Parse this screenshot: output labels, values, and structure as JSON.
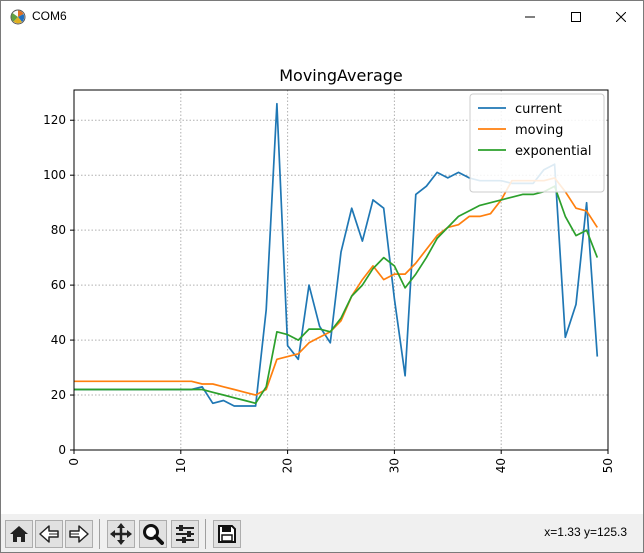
{
  "window": {
    "title": "COM6"
  },
  "toolbar": {
    "buttons": [
      {
        "name": "home-button",
        "icon": "home-icon"
      },
      {
        "name": "back-button",
        "icon": "back-arrow-icon"
      },
      {
        "name": "forward-button",
        "icon": "forward-arrow-icon"
      },
      {
        "name": "pan-button",
        "icon": "move-icon"
      },
      {
        "name": "zoom-button",
        "icon": "zoom-icon"
      },
      {
        "name": "configure-subplots-button",
        "icon": "sliders-icon"
      },
      {
        "name": "save-button",
        "icon": "save-icon"
      }
    ],
    "coords": "x=1.33 y=125.3"
  },
  "chart_data": {
    "type": "line",
    "title": "MovingAverage",
    "xlabel": "",
    "ylabel": "",
    "xlim": [
      0,
      50
    ],
    "ylim": [
      0,
      131
    ],
    "xticks": [
      0,
      10,
      20,
      30,
      40,
      50
    ],
    "yticks": [
      0,
      20,
      40,
      60,
      80,
      100,
      120
    ],
    "grid": true,
    "legend": "top-right",
    "x": [
      0,
      1,
      2,
      3,
      4,
      5,
      6,
      7,
      8,
      9,
      10,
      11,
      12,
      13,
      14,
      15,
      16,
      17,
      18,
      19,
      20,
      21,
      22,
      23,
      24,
      25,
      26,
      27,
      28,
      29,
      30,
      31,
      32,
      33,
      34,
      35,
      36,
      37,
      38,
      39,
      40,
      41,
      42,
      43,
      44,
      45,
      46,
      47,
      48,
      49
    ],
    "series": [
      {
        "name": "current",
        "color": "#1f77b4",
        "values": [
          22,
          22,
          22,
          22,
          22,
          22,
          22,
          22,
          22,
          22,
          22,
          22,
          23,
          17,
          18,
          16,
          16,
          16,
          51,
          126,
          38,
          33,
          60,
          45,
          39,
          72,
          88,
          76,
          91,
          88,
          55,
          27,
          93,
          96,
          101,
          99,
          101,
          99,
          98,
          98,
          98,
          97,
          97,
          97,
          102,
          104,
          41,
          53,
          90,
          34
        ]
      },
      {
        "name": "moving",
        "color": "#ff7f0e",
        "values": [
          25,
          25,
          25,
          25,
          25,
          25,
          25,
          25,
          25,
          25,
          25,
          25,
          24,
          24,
          23,
          22,
          21,
          20,
          22,
          33,
          34,
          35,
          39,
          41,
          43,
          47,
          56,
          62,
          67,
          62,
          64,
          64,
          68,
          73,
          78,
          81,
          82,
          85,
          85,
          86,
          91,
          98,
          98,
          98,
          98,
          99,
          94,
          88,
          87,
          81
        ]
      },
      {
        "name": "exponential",
        "color": "#2ca02c",
        "values": [
          22,
          22,
          22,
          22,
          22,
          22,
          22,
          22,
          22,
          22,
          22,
          22,
          22,
          21,
          20,
          19,
          18,
          17,
          23,
          43,
          42,
          40,
          44,
          44,
          43,
          48,
          56,
          60,
          66,
          70,
          67,
          59,
          64,
          70,
          77,
          81,
          85,
          87,
          89,
          90,
          91,
          92,
          93,
          93,
          94,
          96,
          85,
          78,
          80,
          70
        ]
      }
    ]
  }
}
